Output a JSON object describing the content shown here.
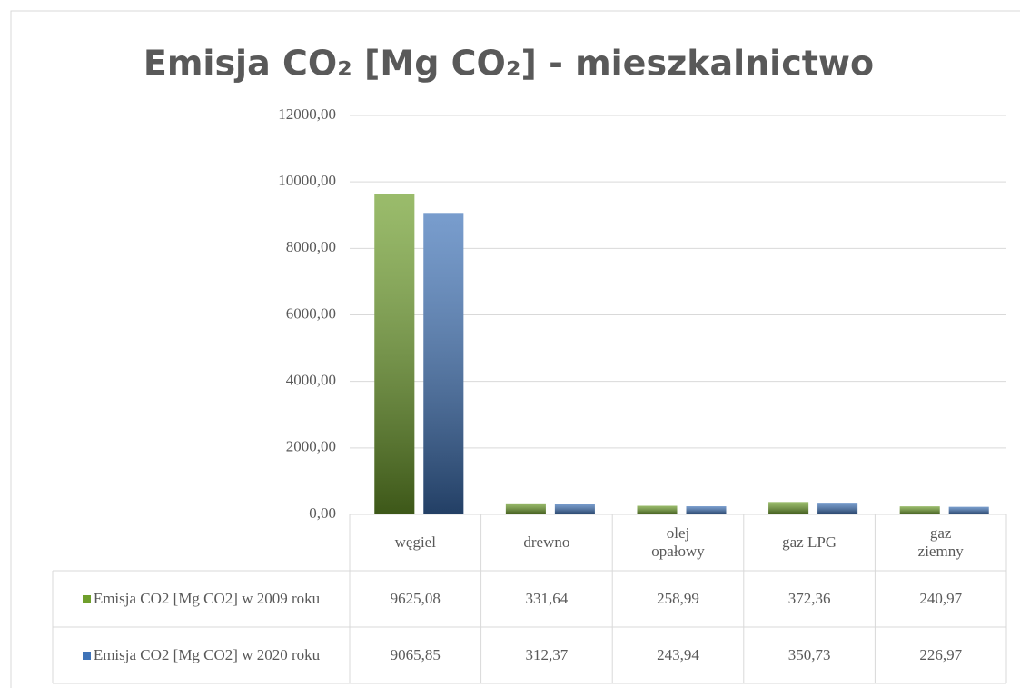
{
  "chart_data": {
    "type": "bar",
    "title": "Emisja CO₂ [Mg CO₂] - mieszkalnictwo",
    "categories": [
      "węgiel",
      "drewno",
      "olej opałowy",
      "gaz LPG",
      "gaz ziemny"
    ],
    "series": [
      {
        "name": "Emisja CO2 [Mg CO2] w 2009 roku",
        "color": "#6f9f2c",
        "values": [
          9625.08,
          331.64,
          258.99,
          372.36,
          240.97
        ],
        "value_labels": [
          "9625,08",
          "331,64",
          "258,99",
          "372,36",
          "240,97"
        ]
      },
      {
        "name": "Emisja CO2 [Mg CO2] w 2020 roku",
        "color": "#3f73b8",
        "values": [
          9065.85,
          312.37,
          243.94,
          350.73,
          226.97
        ],
        "value_labels": [
          "9065,85",
          "312,37",
          "243,94",
          "350,73",
          "226,97"
        ]
      }
    ],
    "ylim": [
      0,
      12000
    ],
    "yticks": [
      {
        "value": 0,
        "label": "0,00"
      },
      {
        "value": 2000,
        "label": "2000,00"
      },
      {
        "value": 4000,
        "label": "4000,00"
      },
      {
        "value": 6000,
        "label": "6000,00"
      },
      {
        "value": 8000,
        "label": "8000,00"
      },
      {
        "value": 10000,
        "label": "10000,00"
      },
      {
        "value": 12000,
        "label": "12000,00"
      }
    ],
    "grid": true
  }
}
